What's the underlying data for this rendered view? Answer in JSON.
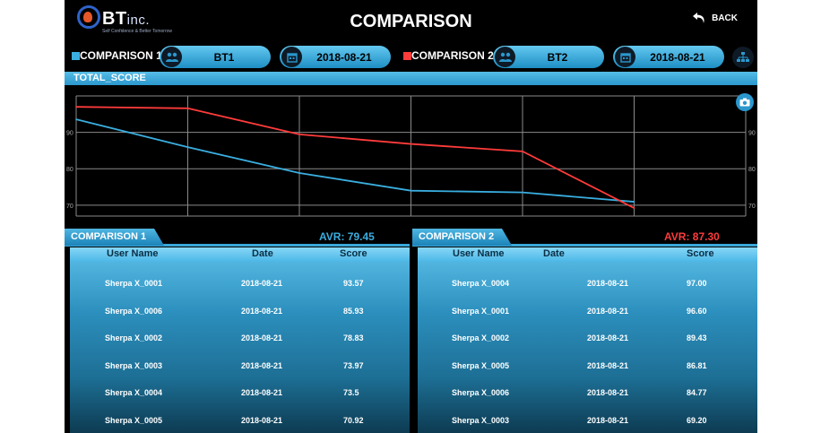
{
  "header": {
    "logo_text": "BT",
    "logo_suffix": "inc.",
    "logo_tagline": "Self Confidence & Better Tomorrow",
    "title": "COMPARISON",
    "back_label": "BACK"
  },
  "comparison1": {
    "label": "COMPARISON 1:",
    "color": "#3aaee0",
    "group": "BT1",
    "date": "2018-08-21"
  },
  "comparison2": {
    "label": "COMPARISON 2:",
    "color": "#ff3b3b",
    "group": "BT2",
    "date": "2018-08-21"
  },
  "chart_data": {
    "type": "line",
    "title": "TOTAL_SCORE",
    "x": [
      1,
      2,
      3,
      4,
      5,
      6
    ],
    "yticks": [
      70,
      80,
      90
    ],
    "ylim": [
      67,
      100
    ],
    "grid": true,
    "series": [
      {
        "color": "#3aaee0",
        "values": [
          93.57,
          85.93,
          78.83,
          73.97,
          73.5,
          70.92
        ]
      },
      {
        "color": "#ff3b3b",
        "values": [
          97.0,
          96.6,
          89.43,
          86.81,
          84.77,
          69.2
        ]
      }
    ]
  },
  "table1": {
    "title": "COMPARISON 1",
    "avr": "AVR: 79.45",
    "avr_color": "#3aaee0",
    "columns": [
      "User Name",
      "Date",
      "Score"
    ],
    "rows": [
      [
        "Sherpa X_0001",
        "2018-08-21",
        "93.57"
      ],
      [
        "Sherpa X_0006",
        "2018-08-21",
        "85.93"
      ],
      [
        "Sherpa X_0002",
        "2018-08-21",
        "78.83"
      ],
      [
        "Sherpa X_0003",
        "2018-08-21",
        "73.97"
      ],
      [
        "Sherpa X_0004",
        "2018-08-21",
        "73.5"
      ],
      [
        "Sherpa X_0005",
        "2018-08-21",
        "70.92"
      ]
    ]
  },
  "table2": {
    "title": "COMPARISON 2",
    "avr": "AVR: 87.30",
    "avr_color": "#ff3b3b",
    "columns": [
      "User Name",
      "Date",
      "Score"
    ],
    "rows": [
      [
        "Sherpa X_0004",
        "2018-08-21",
        "97.00"
      ],
      [
        "Sherpa X_0001",
        "2018-08-21",
        "96.60"
      ],
      [
        "Sherpa X_0002",
        "2018-08-21",
        "89.43"
      ],
      [
        "Sherpa X_0005",
        "2018-08-21",
        "86.81"
      ],
      [
        "Sherpa X_0006",
        "2018-08-21",
        "84.77"
      ],
      [
        "Sherpa X_0003",
        "2018-08-21",
        "69.20"
      ]
    ]
  }
}
